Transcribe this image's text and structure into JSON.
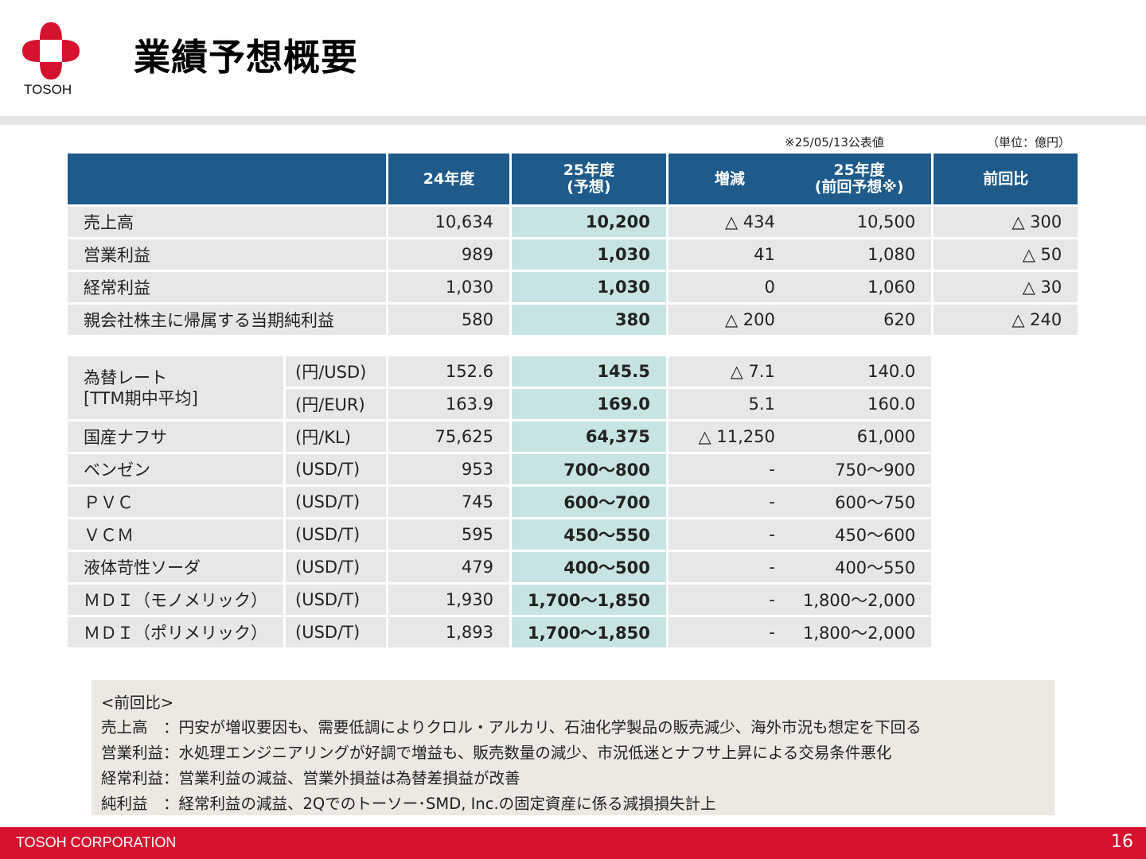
{
  "header": {
    "logo_text": "TOSOH",
    "title": "業績予想概要"
  },
  "notes": {
    "published": "※25/05/13公表値",
    "unit": "（単位：億円）"
  },
  "main_table": {
    "headers": [
      "24年度",
      "25年度\n(予想)",
      "増減"
    ],
    "rows": [
      {
        "label": "売上高",
        "fy24": "10,634",
        "fy25": "10,200",
        "diff": "△ 434"
      },
      {
        "label": "営業利益",
        "fy24": "989",
        "fy25": "1,030",
        "diff": "41"
      },
      {
        "label": "経常利益",
        "fy24": "1,030",
        "fy25": "1,030",
        "diff": "0"
      },
      {
        "label": "親会社株主に帰属する当期純利益",
        "fy24": "580",
        "fy25": "380",
        "diff": "△ 200"
      }
    ],
    "assumptions": [
      {
        "label": "為替レート\n[TTM期中平均]",
        "unit": "(円/USD)",
        "fy24": "152.6",
        "fy25": "145.5",
        "diff": "△ 7.1"
      },
      {
        "label": "",
        "unit": "(円/EUR)",
        "fy24": "163.9",
        "fy25": "169.0",
        "diff": "5.1"
      },
      {
        "label": "国産ナフサ",
        "unit": "(円/KL)",
        "fy24": "75,625",
        "fy25": "64,375",
        "diff": "△ 11,250"
      },
      {
        "label": "ベンゼン",
        "unit": "(USD/T)",
        "fy24": "953",
        "fy25": "700～800",
        "diff": "-"
      },
      {
        "label": "ＰＶＣ",
        "unit": "(USD/T)",
        "fy24": "745",
        "fy25": "600～700",
        "diff": "-"
      },
      {
        "label": "ＶＣＭ",
        "unit": "(USD/T)",
        "fy24": "595",
        "fy25": "450～550",
        "diff": "-"
      },
      {
        "label": "液体苛性ソーダ",
        "unit": "(USD/T)",
        "fy24": "479",
        "fy25": "400～500",
        "diff": "-"
      },
      {
        "label": "ＭＤＩ（モノメリック）",
        "unit": "(USD/T)",
        "fy24": "1,930",
        "fy25": "1,700～1,850",
        "diff": "-"
      },
      {
        "label": "ＭＤＩ（ポリメリック）",
        "unit": "(USD/T)",
        "fy24": "1,893",
        "fy25": "1,700～1,850",
        "diff": "-"
      }
    ]
  },
  "prev_table": {
    "headers": [
      "25年度\n(前回予想※)",
      "前回比"
    ],
    "rows": [
      [
        "10,500",
        "△ 300"
      ],
      [
        "1,080",
        "△ 50"
      ],
      [
        "1,060",
        "△ 30"
      ],
      [
        "620",
        "△ 240"
      ]
    ],
    "assumptions": [
      "140.0",
      "160.0",
      "61,000",
      "750～900",
      "600～750",
      "450～600",
      "400～550",
      "1,800～2,000",
      "1,800～2,000"
    ]
  },
  "commentary": [
    "<前回比>",
    "売上高　：円安が増収要因も、需要低調によりクロル・アルカリ、石油化学製品の販売減少、海外市況も想定を下回る",
    "営業利益：水処理エンジニアリングが好調で増益も、販売数量の減少、市況低迷とナフサ上昇による交易条件悪化",
    "経常利益：営業利益の減益、営業外損益は為替差損益が改善",
    "純利益　：経常利益の減益、2Qでのトーソー･SMD, Inc.の固定資産に係る減損損失計上"
  ],
  "footer": {
    "company": "TOSOH CORPORATION",
    "page": "16"
  },
  "colors": {
    "brand_red": "#d6122f",
    "header_blue": "#1e5a8a",
    "highlight": "#c8e4e2"
  }
}
